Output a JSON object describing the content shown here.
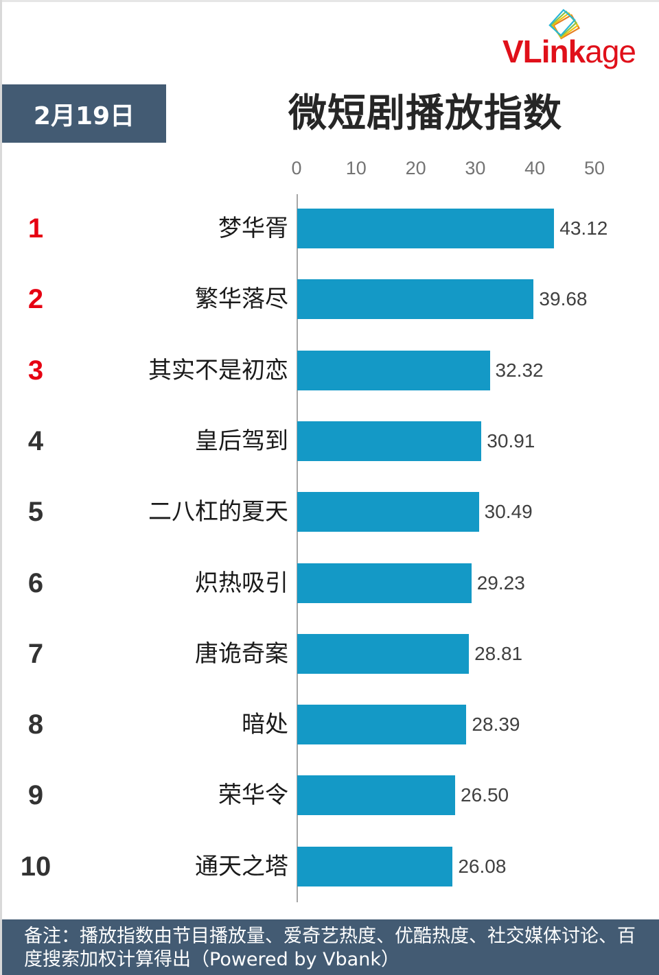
{
  "header": {
    "date_label": "2月19日",
    "title": "微短剧播放指数",
    "logo": {
      "bold": "VLink",
      "light": "age",
      "icon": "stacked-cards-icon",
      "color": "#e0101a"
    }
  },
  "axis": {
    "ticks": [
      "0",
      "10",
      "20",
      "30",
      "40",
      "50"
    ]
  },
  "footer": {
    "note": "备注：播放指数由节目播放量、爱奇艺热度、优酷热度、社交媒体讨论、百度搜索加权计算得出（Powered by Vbank）"
  },
  "colors": {
    "bar": "#1499c6",
    "top_rank": "#e60012",
    "rank": "#333333",
    "header_bg": "#435b73"
  },
  "rows": [
    {
      "rank": "1",
      "name": "梦华胥",
      "value": "43.12"
    },
    {
      "rank": "2",
      "name": "繁华落尽",
      "value": "39.68"
    },
    {
      "rank": "3",
      "name": "其实不是初恋",
      "value": "32.32"
    },
    {
      "rank": "4",
      "name": "皇后驾到",
      "value": "30.91"
    },
    {
      "rank": "5",
      "name": "二八杠的夏天",
      "value": "30.49"
    },
    {
      "rank": "6",
      "name": "炽热吸引",
      "value": "29.23"
    },
    {
      "rank": "7",
      "name": "唐诡奇案",
      "value": "28.81"
    },
    {
      "rank": "8",
      "name": "暗处",
      "value": "28.39"
    },
    {
      "rank": "9",
      "name": "荣华令",
      "value": "26.50"
    },
    {
      "rank": "10",
      "name": "通天之塔",
      "value": "26.08"
    }
  ],
  "chart_data": {
    "type": "bar",
    "orientation": "horizontal",
    "title": "微短剧播放指数",
    "subtitle": "2月19日",
    "categories": [
      "梦华胥",
      "繁华落尽",
      "其实不是初恋",
      "皇后驾到",
      "二八杠的夏天",
      "炽热吸引",
      "唐诡奇案",
      "暗处",
      "荣华令",
      "通天之塔"
    ],
    "values": [
      43.12,
      39.68,
      32.32,
      30.91,
      30.49,
      29.23,
      28.81,
      28.39,
      26.5,
      26.08
    ],
    "ranks": [
      1,
      2,
      3,
      4,
      5,
      6,
      7,
      8,
      9,
      10
    ],
    "xlabel": "",
    "ylabel": "",
    "xlim": [
      0,
      50
    ],
    "x_ticks": [
      0,
      10,
      20,
      30,
      40,
      50
    ],
    "x_axis_position": "top",
    "grid": false,
    "legend": null,
    "data_labels": true,
    "annotation": "备注：播放指数由节目播放量、爱奇艺热度、优酷热度、社交媒体讨论、百度搜索加权计算得出（Powered by Vbank）"
  }
}
